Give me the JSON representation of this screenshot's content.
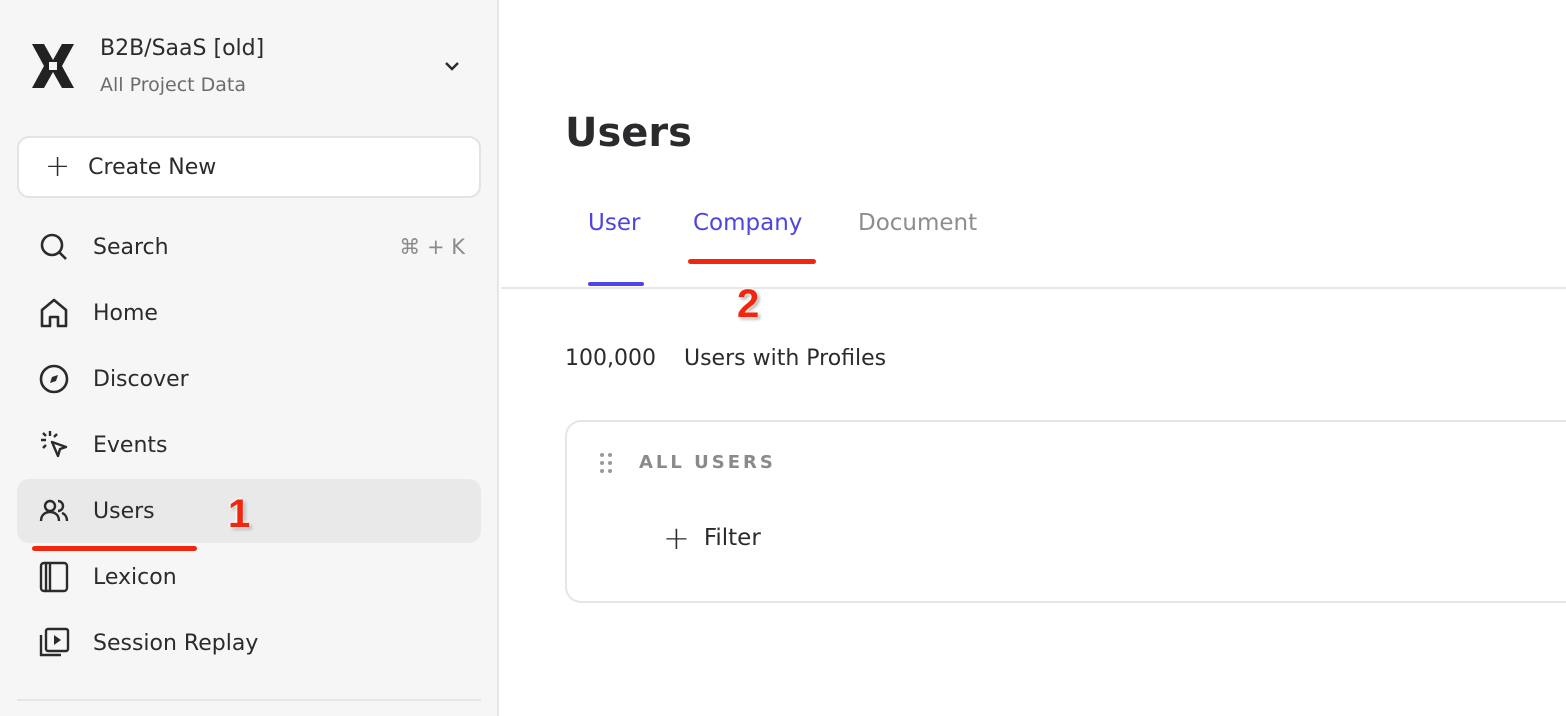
{
  "project": {
    "name": "B2B/SaaS [old]",
    "subtitle": "All Project Data"
  },
  "sidebar": {
    "create_label": "Create New",
    "items": [
      {
        "label": "Search",
        "icon": "search-icon",
        "shortcut": "⌘ + K"
      },
      {
        "label": "Home",
        "icon": "home-icon"
      },
      {
        "label": "Discover",
        "icon": "compass-icon"
      },
      {
        "label": "Events",
        "icon": "cursor-click-icon"
      },
      {
        "label": "Users",
        "icon": "users-icon",
        "active": true
      },
      {
        "label": "Lexicon",
        "icon": "book-icon"
      },
      {
        "label": "Session Replay",
        "icon": "replay-icon"
      }
    ]
  },
  "main": {
    "title": "Users",
    "tabs": [
      {
        "label": "User",
        "selected": true
      },
      {
        "label": "Company"
      },
      {
        "label": "Document"
      }
    ],
    "count": "100,000",
    "count_label": "Users with Profiles",
    "card": {
      "title": "ALL USERS",
      "filter_label": "Filter"
    }
  },
  "annotations": [
    "1",
    "2"
  ],
  "colors": {
    "accent": "#5046e5",
    "annotation": "#f2260f"
  }
}
